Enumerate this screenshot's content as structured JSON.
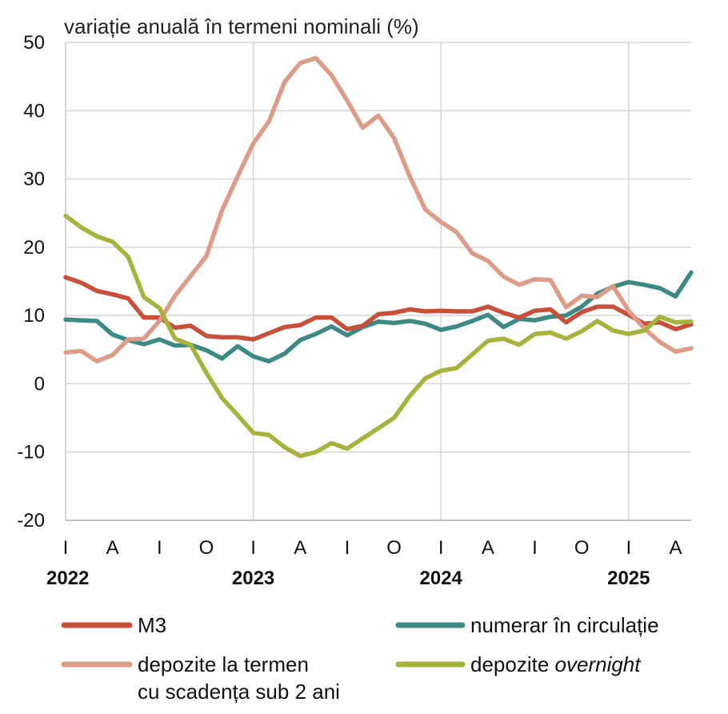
{
  "chart_data": {
    "type": "line",
    "title": "variație anuală în termeni nominali (%)",
    "ylim": [
      -20,
      50
    ],
    "yticks": [
      50,
      40,
      30,
      20,
      10,
      0,
      -10,
      -20
    ],
    "xticks": [
      {
        "month": 0,
        "label": "I"
      },
      {
        "month": 3,
        "label": "A"
      },
      {
        "month": 6,
        "label": "I"
      },
      {
        "month": 9,
        "label": "O"
      },
      {
        "month": 12,
        "label": "I"
      },
      {
        "month": 15,
        "label": "A"
      },
      {
        "month": 18,
        "label": "I"
      },
      {
        "month": 21,
        "label": "O"
      },
      {
        "month": 24,
        "label": "I"
      },
      {
        "month": 27,
        "label": "A"
      },
      {
        "month": 30,
        "label": "I"
      },
      {
        "month": 33,
        "label": "O"
      },
      {
        "month": 36,
        "label": "I"
      },
      {
        "month": 39,
        "label": "A"
      }
    ],
    "years": [
      {
        "month": 0,
        "label": "2022"
      },
      {
        "month": 12,
        "label": "2023"
      },
      {
        "month": 24,
        "label": "2024"
      },
      {
        "month": 36,
        "label": "2025"
      }
    ],
    "grid": true,
    "legend_position": "bottom",
    "series": [
      {
        "name": "M3",
        "color": "#c8503a",
        "values": [
          15.6,
          14.8,
          13.6,
          13.1,
          12.5,
          9.7,
          9.7,
          8.2,
          8.5,
          7.0,
          6.8,
          6.8,
          6.5,
          7.4,
          8.3,
          8.6,
          9.7,
          9.7,
          8.0,
          8.5,
          10.2,
          10.4,
          10.9,
          10.6,
          10.7,
          10.6,
          10.6,
          11.3,
          10.4,
          9.7,
          10.7,
          10.9,
          9.0,
          10.5,
          11.3,
          11.3,
          10.1,
          8.8,
          9.0,
          8.0,
          8.7
        ]
      },
      {
        "name": "numerar în circulație",
        "color": "#3d8a85",
        "values": [
          9.4,
          9.3,
          9.2,
          7.2,
          6.4,
          5.8,
          6.5,
          5.6,
          5.7,
          4.9,
          3.7,
          5.5,
          4.0,
          3.3,
          4.4,
          6.4,
          7.3,
          8.4,
          7.1,
          8.3,
          9.1,
          8.9,
          9.2,
          8.8,
          7.9,
          8.4,
          9.2,
          10.1,
          8.3,
          9.5,
          9.3,
          9.8,
          10.0,
          11.3,
          13.2,
          14.2,
          14.9,
          14.5,
          14.0,
          12.8,
          16.3
        ]
      },
      {
        "name": "depozite la termen cu scadența sub 2 ani",
        "color": "#dc9c88",
        "values": [
          4.6,
          4.8,
          3.3,
          4.2,
          6.5,
          6.6,
          9.2,
          12.9,
          15.8,
          18.7,
          25.4,
          30.4,
          35.2,
          38.4,
          44.2,
          47.0,
          47.7,
          45.2,
          41.5,
          37.5,
          39.3,
          36.0,
          30.4,
          25.5,
          23.7,
          22.2,
          19.1,
          18.0,
          15.7,
          14.5,
          15.3,
          15.2,
          11.2,
          12.9,
          12.7,
          14.3,
          10.7,
          8.1,
          6.1,
          4.7,
          5.2
        ]
      },
      {
        "name": "depozite overnight",
        "color": "#a7b43b",
        "values": [
          24.6,
          22.9,
          21.6,
          20.8,
          18.6,
          12.7,
          11.1,
          6.6,
          5.7,
          1.6,
          -2.1,
          -4.6,
          -7.2,
          -7.5,
          -9.3,
          -10.6,
          -10.0,
          -8.7,
          -9.5,
          -8.0,
          -6.5,
          -5.0,
          -1.8,
          0.8,
          1.9,
          2.3,
          4.3,
          6.3,
          6.6,
          5.7,
          7.3,
          7.5,
          6.6,
          7.7,
          9.2,
          7.8,
          7.3,
          7.8,
          9.8,
          9.0,
          9.1
        ]
      }
    ]
  },
  "legend": {
    "m3": "M3",
    "numerar": "numerar în circulație",
    "termen_line1": "depozite la termen",
    "termen_line2": "cu scadența sub 2 ani",
    "overnight_prefix": "depozite ",
    "overnight_italic": "overnight"
  }
}
